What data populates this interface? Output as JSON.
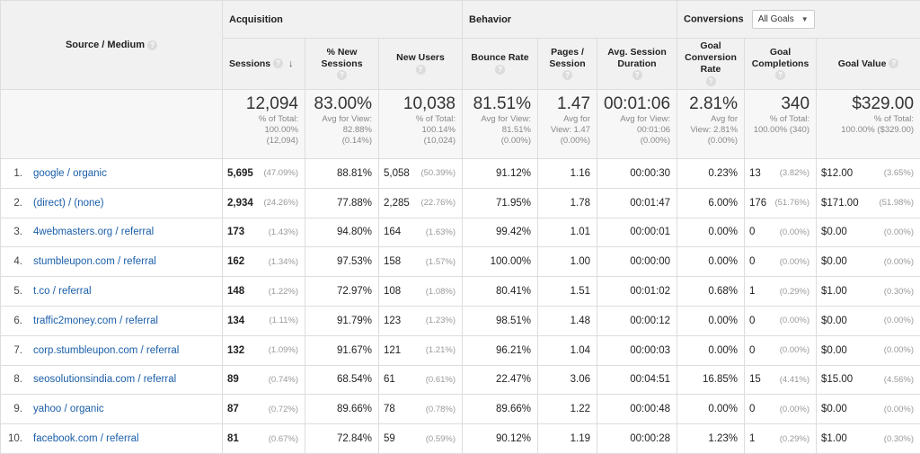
{
  "header": {
    "source_medium": "Source / Medium",
    "acquisition": "Acquisition",
    "behavior": "Behavior",
    "conversions": "Conversions",
    "goals_dropdown": "All Goals",
    "help_glyph": "?",
    "sort_glyph": "↓",
    "columns": {
      "sessions": "Sessions",
      "pct_new_sessions": "% New Sessions",
      "new_users": "New Users",
      "bounce_rate": "Bounce Rate",
      "pages_session": "Pages / Session",
      "avg_session_duration": "Avg. Session Duration",
      "goal_conversion_rate": "Goal Conversion Rate",
      "goal_completions": "Goal Completions",
      "goal_value": "Goal Value"
    }
  },
  "totals": {
    "sessions": {
      "value": "12,094",
      "l1": "% of Total:",
      "l2": "100.00%",
      "l3": "(12,094)"
    },
    "pct_new_sessions": {
      "value": "83.00%",
      "l1": "Avg for View:",
      "l2": "82.88%",
      "l3": "(0.14%)"
    },
    "new_users": {
      "value": "10,038",
      "l1": "% of Total:",
      "l2": "100.14%",
      "l3": "(10,024)"
    },
    "bounce_rate": {
      "value": "81.51%",
      "l1": "Avg for View:",
      "l2": "81.51%",
      "l3": "(0.00%)"
    },
    "pages_session": {
      "value": "1.47",
      "l1": "Avg for",
      "l2": "View: 1.47",
      "l3": "(0.00%)"
    },
    "avg_session_duration": {
      "value": "00:01:06",
      "l1": "Avg for View:",
      "l2": "00:01:06",
      "l3": "(0.00%)"
    },
    "goal_conversion_rate": {
      "value": "2.81%",
      "l1": "Avg for",
      "l2": "View: 2.81%",
      "l3": "(0.00%)"
    },
    "goal_completions": {
      "value": "340",
      "l1": "% of Total:",
      "l2": "100.00% (340)",
      "l3": ""
    },
    "goal_value": {
      "value": "$329.00",
      "l1": "% of Total:",
      "l2": "100.00% ($329.00)",
      "l3": ""
    }
  },
  "rows": [
    {
      "n": "1.",
      "source": "google / organic",
      "sessions": "5,695",
      "sessions_pct": "(47.09%)",
      "new_sessions": "88.81%",
      "new_users": "5,058",
      "new_users_pct": "(50.39%)",
      "bounce": "91.12%",
      "pages": "1.16",
      "duration": "00:00:30",
      "conv_rate": "0.23%",
      "completions": "13",
      "completions_pct": "(3.82%)",
      "value": "$12.00",
      "value_pct": "(3.65%)"
    },
    {
      "n": "2.",
      "source": "(direct) / (none)",
      "sessions": "2,934",
      "sessions_pct": "(24.26%)",
      "new_sessions": "77.88%",
      "new_users": "2,285",
      "new_users_pct": "(22.76%)",
      "bounce": "71.95%",
      "pages": "1.78",
      "duration": "00:01:47",
      "conv_rate": "6.00%",
      "completions": "176",
      "completions_pct": "(51.76%)",
      "value": "$171.00",
      "value_pct": "(51.98%)"
    },
    {
      "n": "3.",
      "source": "4webmasters.org / referral",
      "sessions": "173",
      "sessions_pct": "(1.43%)",
      "new_sessions": "94.80%",
      "new_users": "164",
      "new_users_pct": "(1.63%)",
      "bounce": "99.42%",
      "pages": "1.01",
      "duration": "00:00:01",
      "conv_rate": "0.00%",
      "completions": "0",
      "completions_pct": "(0.00%)",
      "value": "$0.00",
      "value_pct": "(0.00%)"
    },
    {
      "n": "4.",
      "source": "stumbleupon.com / referral",
      "sessions": "162",
      "sessions_pct": "(1.34%)",
      "new_sessions": "97.53%",
      "new_users": "158",
      "new_users_pct": "(1.57%)",
      "bounce": "100.00%",
      "pages": "1.00",
      "duration": "00:00:00",
      "conv_rate": "0.00%",
      "completions": "0",
      "completions_pct": "(0.00%)",
      "value": "$0.00",
      "value_pct": "(0.00%)"
    },
    {
      "n": "5.",
      "source": "t.co / referral",
      "sessions": "148",
      "sessions_pct": "(1.22%)",
      "new_sessions": "72.97%",
      "new_users": "108",
      "new_users_pct": "(1.08%)",
      "bounce": "80.41%",
      "pages": "1.51",
      "duration": "00:01:02",
      "conv_rate": "0.68%",
      "completions": "1",
      "completions_pct": "(0.29%)",
      "value": "$1.00",
      "value_pct": "(0.30%)"
    },
    {
      "n": "6.",
      "source": "traffic2money.com / referral",
      "sessions": "134",
      "sessions_pct": "(1.11%)",
      "new_sessions": "91.79%",
      "new_users": "123",
      "new_users_pct": "(1.23%)",
      "bounce": "98.51%",
      "pages": "1.48",
      "duration": "00:00:12",
      "conv_rate": "0.00%",
      "completions": "0",
      "completions_pct": "(0.00%)",
      "value": "$0.00",
      "value_pct": "(0.00%)"
    },
    {
      "n": "7.",
      "source": "corp.stumbleupon.com / referral",
      "sessions": "132",
      "sessions_pct": "(1.09%)",
      "new_sessions": "91.67%",
      "new_users": "121",
      "new_users_pct": "(1.21%)",
      "bounce": "96.21%",
      "pages": "1.04",
      "duration": "00:00:03",
      "conv_rate": "0.00%",
      "completions": "0",
      "completions_pct": "(0.00%)",
      "value": "$0.00",
      "value_pct": "(0.00%)"
    },
    {
      "n": "8.",
      "source": "seosolutionsindia.com / referral",
      "sessions": "89",
      "sessions_pct": "(0.74%)",
      "new_sessions": "68.54%",
      "new_users": "61",
      "new_users_pct": "(0.61%)",
      "bounce": "22.47%",
      "pages": "3.06",
      "duration": "00:04:51",
      "conv_rate": "16.85%",
      "completions": "15",
      "completions_pct": "(4.41%)",
      "value": "$15.00",
      "value_pct": "(4.56%)"
    },
    {
      "n": "9.",
      "source": "yahoo / organic",
      "sessions": "87",
      "sessions_pct": "(0.72%)",
      "new_sessions": "89.66%",
      "new_users": "78",
      "new_users_pct": "(0.78%)",
      "bounce": "89.66%",
      "pages": "1.22",
      "duration": "00:00:48",
      "conv_rate": "0.00%",
      "completions": "0",
      "completions_pct": "(0.00%)",
      "value": "$0.00",
      "value_pct": "(0.00%)"
    },
    {
      "n": "10.",
      "source": "facebook.com / referral",
      "sessions": "81",
      "sessions_pct": "(0.67%)",
      "new_sessions": "72.84%",
      "new_users": "59",
      "new_users_pct": "(0.59%)",
      "bounce": "90.12%",
      "pages": "1.19",
      "duration": "00:00:28",
      "conv_rate": "1.23%",
      "completions": "1",
      "completions_pct": "(0.29%)",
      "value": "$1.00",
      "value_pct": "(0.30%)"
    }
  ]
}
